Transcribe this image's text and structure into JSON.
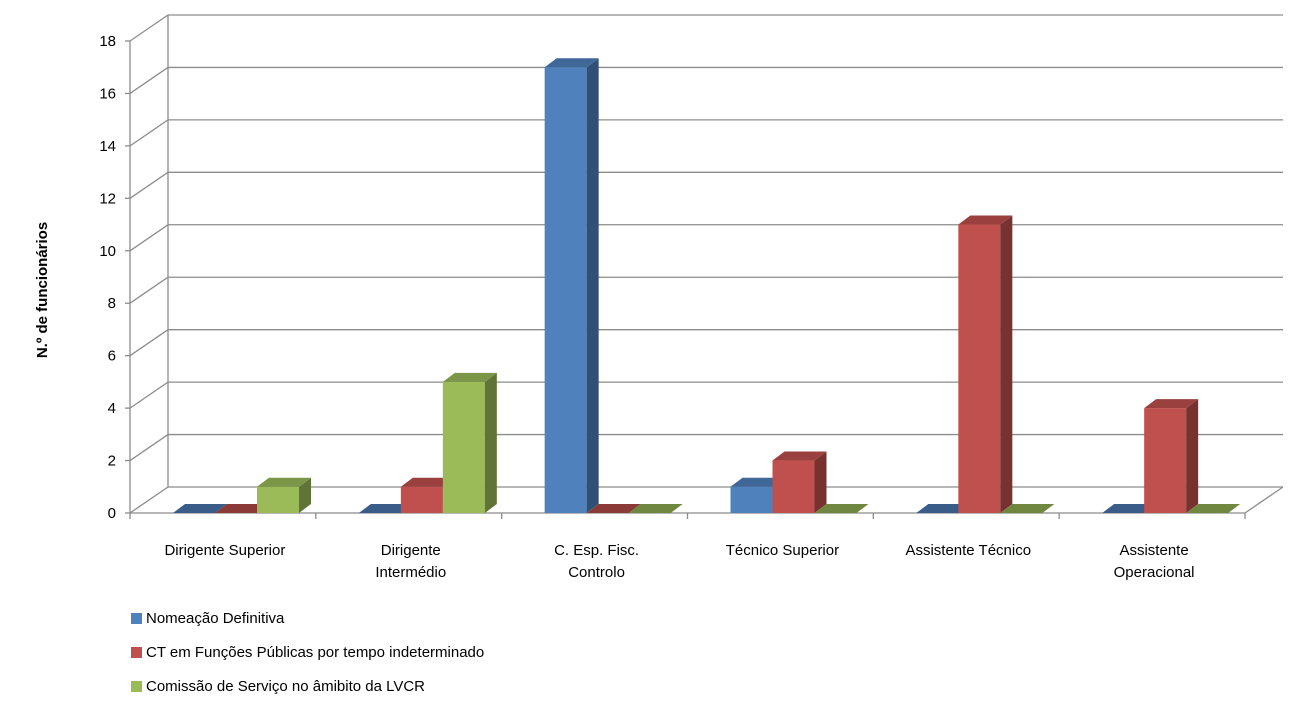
{
  "chart_data": {
    "type": "bar",
    "ylabel": "N.º de funcionários",
    "xlabel": "",
    "ylim": [
      0,
      18
    ],
    "yticks": [
      0,
      2,
      4,
      6,
      8,
      10,
      12,
      14,
      16,
      18
    ],
    "grid": true,
    "legend_position": "bottom-left",
    "categories": [
      [
        "Dirigente Superior"
      ],
      [
        "Dirigente",
        "Intermédio"
      ],
      [
        "C. Esp.  Fisc.",
        "Controlo"
      ],
      [
        "Técnico Superior"
      ],
      [
        "Assistente Técnico"
      ],
      [
        "Assistente",
        "Operacional"
      ]
    ],
    "series": [
      {
        "name": "Nomeação Definitiva",
        "values": [
          0,
          0,
          17,
          1,
          0,
          0
        ],
        "color": "#4f81bd"
      },
      {
        "name": "CT em Funções Públicas por tempo indeterminado",
        "values": [
          0,
          1,
          0,
          2,
          11,
          4
        ],
        "color": "#c0504d"
      },
      {
        "name": "Comissão de Serviço no âmibito da LVCR",
        "values": [
          1,
          5,
          0,
          0,
          0,
          0
        ],
        "color": "#9bbb59"
      }
    ]
  }
}
